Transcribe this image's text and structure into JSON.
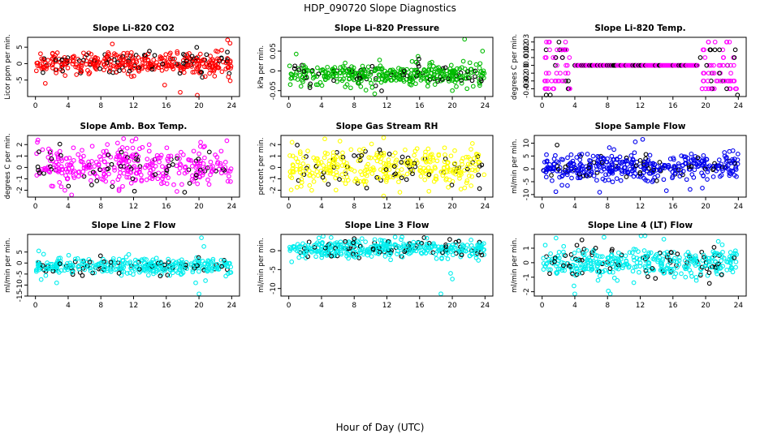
{
  "figure": {
    "title": "HDP_090720  Slope Diagnostics",
    "xlabel": "Hour of Day (UTC)"
  },
  "chart_data": [
    {
      "type": "scatter",
      "title": "Slope Li-820 CO2",
      "ylabel": "Licor ppm per min.",
      "xlim": [
        0,
        24
      ],
      "ylim": [
        -10,
        8
      ],
      "xticks": [
        0,
        4,
        8,
        12,
        16,
        20,
        24
      ],
      "yticks": [
        -5,
        0,
        5
      ],
      "color": "#ff0000",
      "gen": {
        "n": 400,
        "center": 0,
        "spread": 1.6,
        "tails": [
          [
            19.8,
            -9.6
          ],
          [
            23.5,
            7.2
          ],
          [
            23.8,
            6.2
          ],
          [
            1.2,
            -6.0
          ],
          [
            15.8,
            -6.5
          ],
          [
            23.6,
            -4.0
          ]
        ]
      }
    },
    {
      "type": "scatter",
      "title": "Slope Li-820 Pressure",
      "ylabel": "kPa per min.",
      "xlim": [
        0,
        24
      ],
      "ylim": [
        -0.065,
        0.085
      ],
      "xticks": [
        0,
        4,
        8,
        12,
        16,
        20,
        24
      ],
      "yticks": [
        -0.05,
        0,
        0.05
      ],
      "color": "#00bb00",
      "gen": {
        "n": 420,
        "center": -0.01,
        "spread": 0.014,
        "tails": [
          [
            21.5,
            0.08
          ],
          [
            23.7,
            0.05
          ],
          [
            20.0,
            -0.05
          ],
          [
            21.8,
            -0.045
          ],
          [
            10.2,
            -0.042
          ],
          [
            8.8,
            -0.04
          ]
        ]
      }
    },
    {
      "type": "scatter",
      "title": "Slope Li-820 Temp.",
      "ylabel": "degrees C per min.",
      "xlim": [
        0,
        24
      ],
      "ylim": [
        -0.04,
        0.036
      ],
      "xticks": [
        0,
        4,
        8,
        12,
        16,
        20,
        24
      ],
      "yticks": [
        -0.03,
        -0.02,
        -0.01,
        0,
        0.01,
        0.02,
        0.03
      ],
      "color": "#ff00ff",
      "gen": {
        "mode": "temp"
      }
    },
    {
      "type": "scatter",
      "title": "Slope Amb. Box Temp.",
      "ylabel": "degrees C per min.",
      "xlim": [
        0,
        24
      ],
      "ylim": [
        -2.6,
        2.8
      ],
      "xticks": [
        0,
        4,
        8,
        12,
        16,
        20,
        24
      ],
      "yticks": [
        -2,
        -1,
        0,
        1,
        2
      ],
      "color": "#ff00ff",
      "gen": {
        "n": 380,
        "center": 0.1,
        "spread": 0.85,
        "tails": [
          [
            0.3,
            2.4
          ],
          [
            12.3,
            2.5
          ],
          [
            17.3,
            -2.1
          ],
          [
            20.2,
            2.2
          ],
          [
            3.6,
            -2.0
          ]
        ]
      }
    },
    {
      "type": "scatter",
      "title": "Slope Gas Stream RH",
      "ylabel": "percent per min.",
      "xlim": [
        0,
        24
      ],
      "ylim": [
        -2.6,
        2.8
      ],
      "xticks": [
        0,
        4,
        8,
        12,
        16,
        20,
        24
      ],
      "yticks": [
        -2,
        -1,
        0,
        1,
        2
      ],
      "color": "#ffff00",
      "gen": {
        "n": 380,
        "center": 0,
        "spread": 0.85,
        "tails": [
          [
            4.4,
            2.5
          ],
          [
            11.6,
            2.6
          ],
          [
            0.4,
            2.2
          ],
          [
            11.6,
            -2.5
          ],
          [
            2.8,
            -2.0
          ]
        ]
      }
    },
    {
      "type": "scatter",
      "title": "Slope Sample Flow",
      "ylabel": "ml/min per min.",
      "xlim": [
        0,
        24
      ],
      "ylim": [
        -11,
        13
      ],
      "xticks": [
        0,
        4,
        8,
        12,
        16,
        20,
        24
      ],
      "yticks": [
        -10,
        -5,
        0,
        5,
        10
      ],
      "color": "#0000ee",
      "gen": {
        "n": 420,
        "center": 0.5,
        "spread": 2.6,
        "tails": [
          [
            12.3,
            11.5
          ],
          [
            15.2,
            -8.5
          ],
          [
            18.1,
            -8.0
          ],
          [
            19.6,
            -7.5
          ],
          [
            3.1,
            -6.5
          ]
        ]
      }
    },
    {
      "type": "scatter",
      "title": "Slope Line 2 Flow",
      "ylabel": "ml/min per min.",
      "xlim": [
        0,
        24
      ],
      "ylim": [
        -15,
        13
      ],
      "xticks": [
        0,
        4,
        8,
        12,
        16,
        20,
        24
      ],
      "yticks": [
        -15,
        -10,
        -5,
        0,
        5
      ],
      "color": "#00eeee",
      "gen": {
        "n": 380,
        "center": -1.5,
        "spread": 1.7,
        "tails": [
          [
            20.0,
            -14.0
          ],
          [
            20.3,
            11.5
          ],
          [
            20.6,
            7.5
          ],
          [
            19.6,
            -9.0
          ],
          [
            0.7,
            -7.5
          ],
          [
            2.6,
            -9.0
          ],
          [
            20.8,
            -8.0
          ],
          [
            0.4,
            5.5
          ],
          [
            1.0,
            4.0
          ]
        ]
      }
    },
    {
      "type": "scatter",
      "title": "Slope Line 3 Flow",
      "ylabel": "ml/min per min.",
      "xlim": [
        0,
        24
      ],
      "ylim": [
        -12,
        4.3
      ],
      "xticks": [
        0,
        4,
        8,
        12,
        16,
        20,
        24
      ],
      "yticks": [
        -10,
        -5,
        0
      ],
      "color": "#00eeee",
      "gen": {
        "n": 420,
        "center": 0.5,
        "spread": 1.2,
        "tails": [
          [
            18.6,
            -11.4
          ],
          [
            20.0,
            -7.5
          ],
          [
            19.8,
            -6.0
          ],
          [
            4.2,
            3.8
          ],
          [
            13.0,
            3.6
          ]
        ]
      }
    },
    {
      "type": "scatter",
      "title": "Slope Line 4 (LT) Flow",
      "ylabel": "ml/min per min.",
      "xlim": [
        0,
        24
      ],
      "ylim": [
        -2.3,
        1.95
      ],
      "xticks": [
        0,
        4,
        8,
        12,
        16,
        20,
        24
      ],
      "yticks": [
        -2,
        -1,
        0,
        1
      ],
      "color": "#00eeee",
      "gen": {
        "n": 420,
        "center": 0,
        "spread": 0.5,
        "tails": [
          [
            12.1,
            1.85
          ],
          [
            4.0,
            -2.15
          ],
          [
            8.1,
            -1.95
          ],
          [
            1.7,
            1.7
          ],
          [
            3.9,
            -1.6
          ]
        ]
      }
    }
  ]
}
